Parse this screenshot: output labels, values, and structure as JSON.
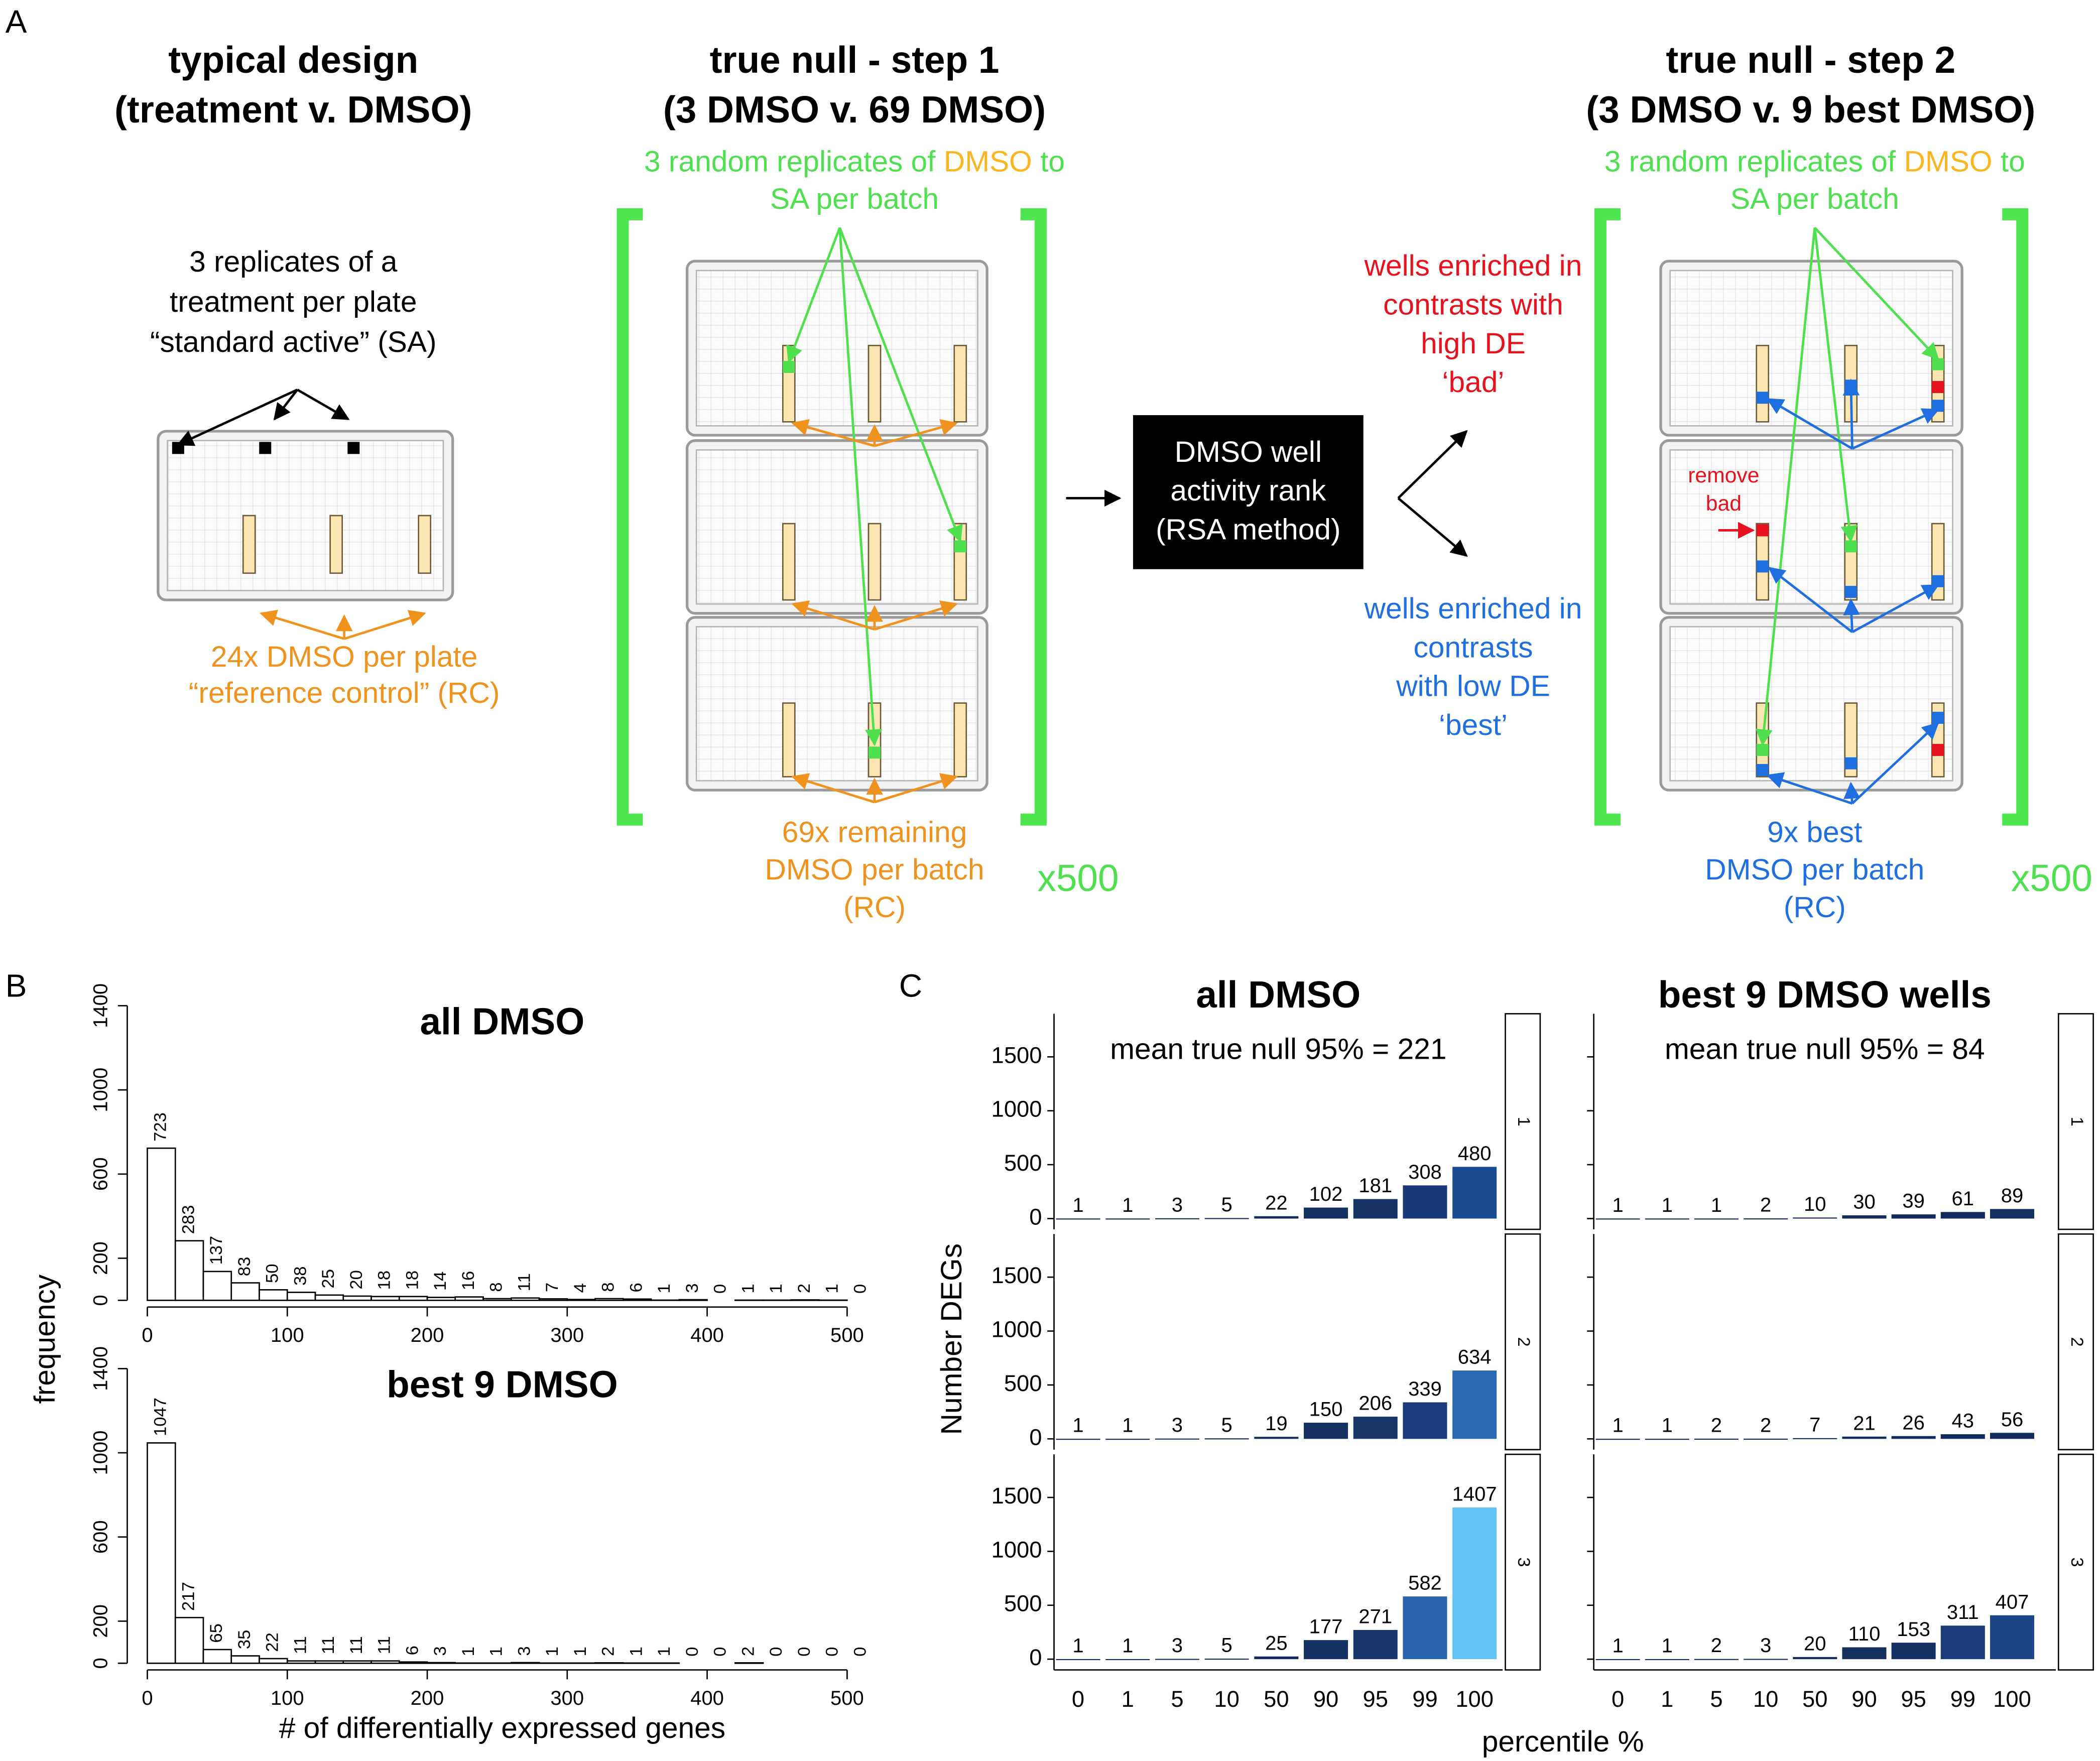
{
  "diagram": {
    "panel_label": "A",
    "typical": {
      "title": [
        "typical design",
        "(treatment v. DMSO)"
      ],
      "sa_note": [
        "3 replicates of a",
        "treatment per plate",
        "“standard active” (SA)"
      ],
      "rc_note": [
        "24x DMSO per plate",
        "“reference control” (RC)"
      ]
    },
    "step1": {
      "title": [
        "true null - step 1",
        "(3 DMSO v. 69 DMSO)"
      ],
      "sa_note": [
        [
          "3 random replicates of ",
          "DMSO",
          " to"
        ],
        [
          "SA per batch"
        ]
      ],
      "rc_note": [
        "69x remaining",
        "DMSO per batch",
        "(RC)"
      ],
      "repeat": "x500"
    },
    "rank_box": [
      "DMSO well",
      "activity rank",
      "(RSA method)"
    ],
    "bad_note": [
      "wells enriched in",
      "contrasts with",
      "high DE",
      "‘bad’"
    ],
    "best_note": [
      "wells enriched in",
      "contrasts",
      "with low DE",
      "‘best’"
    ],
    "step2": {
      "title": [
        "true null - step 2",
        "(3 DMSO v. 9 best DMSO)"
      ],
      "sa_note": [
        [
          "3 random replicates of ",
          "DMSO",
          " to"
        ],
        [
          "SA per batch"
        ]
      ],
      "remove_note": [
        "remove",
        "bad"
      ],
      "rc_note": [
        "9x best",
        "DMSO per batch",
        "(RC)"
      ],
      "repeat": "x500"
    }
  },
  "chart_data": [
    {
      "type": "histogram",
      "panel_label": "B",
      "title": "all DMSO",
      "ylabel": "frequency",
      "bins": [
        0,
        20,
        40,
        60,
        80,
        100,
        120,
        140,
        160,
        180,
        200,
        220,
        240,
        260,
        280,
        300,
        320,
        340,
        360,
        380,
        400,
        420,
        440,
        460,
        480,
        500,
        520
      ],
      "counts": [
        723,
        283,
        137,
        83,
        50,
        38,
        25,
        20,
        18,
        18,
        14,
        16,
        8,
        11,
        7,
        4,
        8,
        6,
        1,
        3,
        0,
        1,
        1,
        2,
        1,
        0
      ],
      "xlim": [
        0,
        520
      ],
      "ylim": [
        0,
        1400
      ],
      "xticks": [
        0,
        100,
        200,
        300,
        400,
        500
      ],
      "yticks": [
        0,
        200,
        600,
        1000,
        1400
      ],
      "color": "#ffffff"
    },
    {
      "type": "histogram",
      "title": "best 9 DMSO",
      "xlabel": "# of differentially expressed genes",
      "bins": [
        0,
        20,
        40,
        60,
        80,
        100,
        120,
        140,
        160,
        180,
        200,
        220,
        240,
        260,
        280,
        300,
        320,
        340,
        360,
        380,
        400,
        420,
        440,
        460,
        480,
        500,
        520
      ],
      "counts": [
        1047,
        217,
        65,
        35,
        22,
        11,
        11,
        11,
        11,
        6,
        3,
        1,
        1,
        3,
        1,
        1,
        2,
        1,
        1,
        0,
        0,
        2,
        0,
        0,
        0,
        0
      ],
      "xlim": [
        0,
        520
      ],
      "ylim": [
        0,
        1400
      ],
      "xticks": [
        0,
        100,
        200,
        300,
        400,
        500
      ],
      "yticks": [
        0,
        200,
        600,
        1000,
        1400
      ],
      "color": "#ffffff"
    },
    {
      "type": "facet_bar",
      "panel_label": "C",
      "title": "all DMSO",
      "subtitle": "mean true null 95% = 221",
      "ylabel": "Number DEGs",
      "categories": [
        "0",
        "1",
        "5",
        "10",
        "50",
        "90",
        "95",
        "99",
        "100"
      ],
      "ylim": [
        -100,
        1900
      ],
      "yticks": [
        0,
        500,
        1000,
        1500
      ],
      "ytick_labels": true,
      "facets": [
        {
          "strip": "1",
          "values": [
            1,
            1,
            3,
            5,
            22,
            102,
            181,
            308,
            480
          ],
          "colors": [
            "#132a5c",
            "#132a5c",
            "#132a5c",
            "#132a5c",
            "#132a5c",
            "#14305f",
            "#163263",
            "#19387a",
            "#1d4b91"
          ]
        },
        {
          "strip": "2",
          "values": [
            1,
            1,
            3,
            5,
            19,
            150,
            206,
            339,
            634
          ],
          "colors": [
            "#132a5c",
            "#132a5c",
            "#132a5c",
            "#132a5c",
            "#132a5c",
            "#153062",
            "#163465",
            "#1a3c7f",
            "#2a68b4"
          ]
        },
        {
          "strip": "3",
          "values": [
            1,
            1,
            3,
            5,
            25,
            177,
            271,
            582,
            1407
          ],
          "colors": [
            "#132a5c",
            "#132a5c",
            "#132a5c",
            "#132a5c",
            "#132a5c",
            "#153163",
            "#173569",
            "#2963b0",
            "#62c4f6"
          ]
        }
      ]
    },
    {
      "type": "facet_bar",
      "title": "best 9 DMSO wells",
      "subtitle": "mean true null 95% = 84",
      "xlabel": "percentile %",
      "categories": [
        "0",
        "1",
        "5",
        "10",
        "50",
        "90",
        "95",
        "99",
        "100"
      ],
      "ylim": [
        -100,
        1900
      ],
      "yticks": [
        0,
        500,
        1000,
        1500
      ],
      "ytick_labels": false,
      "facets": [
        {
          "strip": "1",
          "values": [
            1,
            1,
            1,
            2,
            10,
            30,
            39,
            61,
            89
          ],
          "colors": [
            "#132a5c",
            "#132a5c",
            "#132a5c",
            "#132a5c",
            "#132a5c",
            "#132a5c",
            "#132a5c",
            "#132a5c",
            "#14305f"
          ]
        },
        {
          "strip": "2",
          "values": [
            1,
            1,
            2,
            2,
            7,
            21,
            26,
            43,
            56
          ],
          "colors": [
            "#132a5c",
            "#132a5c",
            "#132a5c",
            "#132a5c",
            "#132a5c",
            "#132a5c",
            "#132a5c",
            "#132a5c",
            "#132a5c"
          ]
        },
        {
          "strip": "3",
          "values": [
            1,
            1,
            2,
            3,
            20,
            110,
            153,
            311,
            407
          ],
          "colors": [
            "#132a5c",
            "#132a5c",
            "#132a5c",
            "#132a5c",
            "#132a5c",
            "#14305f",
            "#153163",
            "#1a3b78",
            "#1d4587"
          ]
        }
      ]
    }
  ]
}
